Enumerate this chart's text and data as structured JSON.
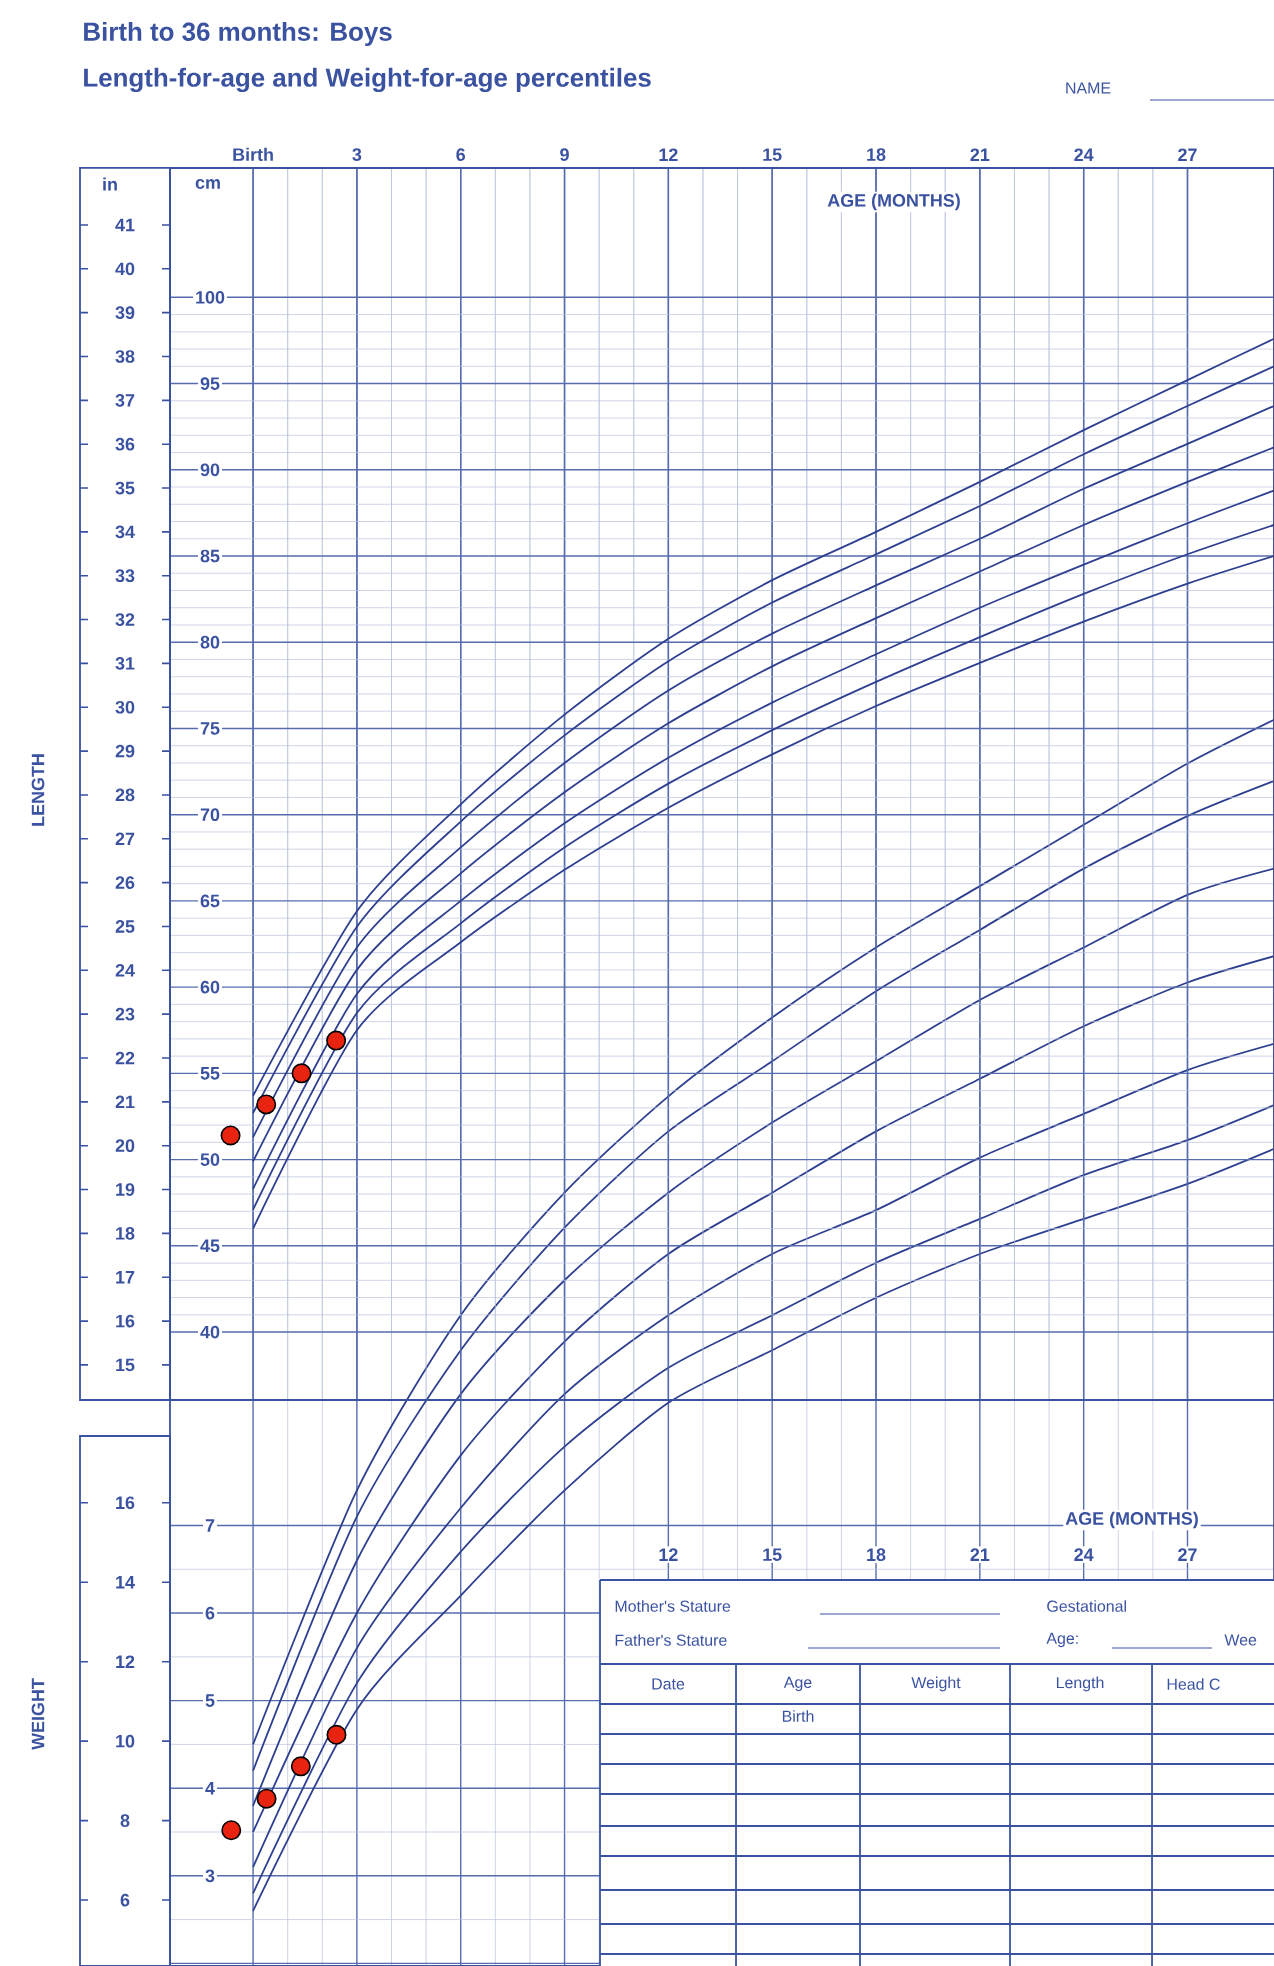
{
  "chart_data": [
    {
      "type": "line",
      "title": "Birth to 36 months: Boys",
      "subtitle": "Length-for-age and Weight-for-age percentiles",
      "xlabel": "AGE (MONTHS)",
      "ylabel": "LENGTH",
      "x": [
        0,
        3,
        6,
        9,
        12,
        15,
        18,
        21,
        24,
        27,
        29.5
      ],
      "xlim": [
        -2.4,
        29.5
      ],
      "xticks": [
        {
          "value": 0,
          "label": "Birth"
        },
        3,
        6,
        9,
        12,
        15,
        18,
        21,
        24,
        27
      ],
      "ylim": [
        14.2,
        42.3
      ],
      "yticks": [
        15,
        16,
        17,
        18,
        19,
        20,
        21,
        22,
        23,
        24,
        25,
        26,
        27,
        28,
        29,
        30,
        31,
        32,
        33,
        34,
        35,
        36,
        37,
        38,
        39,
        40,
        41
      ],
      "y2lim": [
        36.06,
        107.5
      ],
      "y2ticks": [
        40,
        45,
        50,
        55,
        60,
        65,
        70,
        75,
        80,
        85,
        90,
        95,
        100
      ],
      "grid": true,
      "series": [
        {
          "axis": "y2",
          "color": "#2e3f8f",
          "values": [
            46.0,
            57.5,
            62.6,
            66.8,
            70.4,
            73.5,
            76.3,
            78.8,
            81.2,
            83.4,
            85.0
          ]
        },
        {
          "axis": "y2",
          "color": "#2e3f8f",
          "values": [
            47.1,
            58.5,
            63.7,
            68.1,
            71.8,
            74.9,
            77.7,
            80.3,
            82.8,
            85.1,
            86.8
          ]
        },
        {
          "axis": "y2",
          "color": "#2e3f8f",
          "values": [
            48.3,
            59.6,
            65.0,
            69.5,
            73.3,
            76.5,
            79.3,
            82.0,
            84.5,
            86.9,
            88.8
          ]
        },
        {
          "axis": "y2",
          "color": "#2e3f8f",
          "values": [
            49.9,
            61.0,
            66.6,
            71.3,
            75.3,
            78.6,
            81.4,
            84.1,
            86.8,
            89.3,
            91.3
          ]
        },
        {
          "axis": "y2",
          "color": "#2e3f8f",
          "values": [
            51.3,
            62.3,
            68.1,
            73.0,
            77.2,
            80.5,
            83.3,
            86.0,
            88.9,
            91.5,
            93.7
          ]
        },
        {
          "axis": "y2",
          "color": "#2e3f8f",
          "values": [
            52.7,
            63.5,
            69.6,
            74.6,
            78.9,
            82.3,
            85.1,
            87.9,
            90.9,
            93.7,
            96.0
          ]
        },
        {
          "axis": "y2",
          "color": "#2e3f8f",
          "values": [
            53.7,
            64.4,
            70.6,
            75.8,
            80.2,
            83.6,
            86.4,
            89.3,
            92.3,
            95.2,
            97.6
          ]
        },
        {
          "type": "scatter",
          "axis": "y2",
          "marker": "circle",
          "color": "#e8230f",
          "x": [
            -0.65,
            0.38,
            1.4,
            2.4
          ],
          "values": [
            51.4,
            53.2,
            55.0,
            56.9
          ]
        }
      ],
      "annotations": [
        "in",
        "cm",
        "NAME"
      ]
    },
    {
      "type": "line",
      "xlabel": "AGE (MONTHS)",
      "ylabel": "WEIGHT",
      "x": [
        0,
        3,
        6,
        9,
        12,
        15,
        18,
        21,
        24,
        27,
        29.5
      ],
      "xlim": [
        -2.4,
        29.5
      ],
      "xticks": [
        12,
        15,
        18,
        21,
        24,
        27
      ],
      "ylim": [
        4.34,
        49.6
      ],
      "yticks": [
        6,
        8,
        10,
        12,
        14,
        16
      ],
      "y2lim": [
        1.97,
        22.5
      ],
      "y2ticks": [
        {
          "value": 2,
          "label": null
        },
        3,
        4,
        5,
        6,
        7
      ],
      "grid": true,
      "series": [
        {
          "axis": "y2",
          "color": "#2e3f8f",
          "values": [
            2.6,
            4.9,
            6.2,
            7.4,
            8.4,
            9.0,
            9.6,
            10.1,
            10.5,
            10.9,
            11.3
          ]
        },
        {
          "axis": "y2",
          "color": "#2e3f8f",
          "values": [
            2.8,
            5.2,
            6.7,
            7.9,
            8.8,
            9.4,
            10.0,
            10.5,
            11.0,
            11.4,
            11.8
          ]
        },
        {
          "axis": "y2",
          "color": "#2e3f8f",
          "values": [
            3.1,
            5.6,
            7.2,
            8.5,
            9.4,
            10.1,
            10.6,
            11.2,
            11.7,
            12.2,
            12.5
          ]
        },
        {
          "axis": "y2",
          "color": "#2e3f8f",
          "values": [
            3.5,
            6.0,
            7.8,
            9.1,
            10.1,
            10.8,
            11.5,
            12.1,
            12.7,
            13.2,
            13.5
          ]
        },
        {
          "axis": "y2",
          "color": "#2e3f8f",
          "values": [
            3.8,
            6.6,
            8.5,
            9.8,
            10.8,
            11.6,
            12.3,
            13.0,
            13.6,
            14.2,
            14.5
          ]
        },
        {
          "axis": "y2",
          "color": "#2e3f8f",
          "values": [
            4.2,
            7.1,
            9.0,
            10.4,
            11.5,
            12.3,
            13.1,
            13.8,
            14.5,
            15.1,
            15.5
          ]
        },
        {
          "axis": "y2",
          "color": "#2e3f8f",
          "values": [
            4.5,
            7.4,
            9.4,
            10.8,
            11.9,
            12.8,
            13.6,
            14.3,
            15.0,
            15.7,
            16.2
          ]
        },
        {
          "type": "scatter",
          "axis": "y2",
          "marker": "circle",
          "color": "#e8230f",
          "x": [
            -0.63,
            0.39,
            1.38,
            2.41
          ],
          "values": [
            3.52,
            3.88,
            4.25,
            4.61
          ]
        }
      ],
      "annotations": [
        "Mother's Stature",
        "Father's Stature",
        "Gestational",
        "Age:",
        "Wee",
        "Date",
        "Age",
        "Weight",
        "Length",
        "Head C",
        "Birth"
      ]
    }
  ]
}
